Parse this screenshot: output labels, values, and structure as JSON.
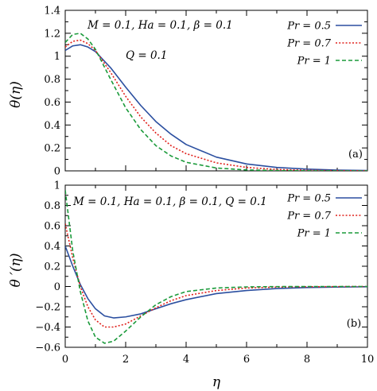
{
  "xlabel": "η",
  "chart_data": [
    {
      "type": "line",
      "panel_label": "(a)",
      "ylabel": "θ(η)",
      "annotations": [
        "M = 0.1,  Ha = 0.1,  β = 0.1",
        "Q = 0.1"
      ],
      "xlim": [
        0,
        10
      ],
      "ylim": [
        0,
        1.4
      ],
      "xticks": [
        "",
        "",
        "",
        "",
        "",
        ""
      ],
      "yticks": [
        "0",
        "0.2",
        "0.4",
        "0.6",
        "0.8",
        "1",
        "1.2",
        "1.4"
      ],
      "legend_position": "top-right",
      "series": [
        {
          "name": "Pr = 0.5",
          "color": "#2b4fa0",
          "dash": "solid",
          "x": [
            0,
            0.25,
            0.5,
            0.75,
            1,
            1.5,
            2,
            2.5,
            3,
            3.5,
            4,
            5,
            6,
            7,
            8,
            9,
            10
          ],
          "y": [
            1.05,
            1.09,
            1.1,
            1.08,
            1.04,
            0.9,
            0.73,
            0.57,
            0.43,
            0.32,
            0.23,
            0.12,
            0.06,
            0.03,
            0.015,
            0.007,
            0.003
          ]
        },
        {
          "name": "Pr = 0.7",
          "color": "#e0201b",
          "dash": "dotted",
          "x": [
            0,
            0.25,
            0.5,
            0.75,
            1,
            1.5,
            2,
            2.5,
            3,
            3.5,
            4,
            5,
            6,
            7,
            8,
            9,
            10
          ],
          "y": [
            1.08,
            1.13,
            1.14,
            1.11,
            1.05,
            0.86,
            0.65,
            0.47,
            0.33,
            0.22,
            0.15,
            0.07,
            0.03,
            0.012,
            0.005,
            0.002,
            0.001
          ]
        },
        {
          "name": "Pr = 1",
          "color": "#1a9a3a",
          "dash": "dashed",
          "x": [
            0,
            0.25,
            0.5,
            0.75,
            1,
            1.5,
            2,
            2.5,
            3,
            3.5,
            4,
            5,
            6,
            7,
            8,
            9,
            10
          ],
          "y": [
            1.12,
            1.19,
            1.2,
            1.15,
            1.06,
            0.8,
            0.55,
            0.36,
            0.22,
            0.13,
            0.075,
            0.025,
            0.008,
            0.003,
            0.001,
            0,
            0
          ]
        }
      ]
    },
    {
      "type": "line",
      "panel_label": "(b)",
      "ylabel": "θ ′(η)",
      "annotations": [
        "M = 0.1,  Ha = 0.1,  β = 0.1,  Q = 0.1"
      ],
      "xlim": [
        0,
        10
      ],
      "ylim": [
        -0.6,
        1
      ],
      "xticks": [
        "0",
        "2",
        "4",
        "6",
        "8",
        "10"
      ],
      "yticks": [
        "−0.6",
        "−0.4",
        "−0.2",
        "0",
        "0.2",
        "0.4",
        "0.6",
        "0.8",
        "1"
      ],
      "legend_position": "top-right",
      "series": [
        {
          "name": "Pr = 0.5",
          "color": "#2b4fa0",
          "dash": "solid",
          "x": [
            0,
            0.25,
            0.5,
            0.75,
            1,
            1.3,
            1.6,
            2,
            2.5,
            3,
            3.5,
            4,
            5,
            6,
            7,
            8,
            9,
            10
          ],
          "y": [
            0.4,
            0.2,
            0.02,
            -0.12,
            -0.22,
            -0.29,
            -0.31,
            -0.3,
            -0.27,
            -0.22,
            -0.17,
            -0.13,
            -0.07,
            -0.04,
            -0.02,
            -0.01,
            -0.006,
            -0.003
          ]
        },
        {
          "name": "Pr = 0.7",
          "color": "#e0201b",
          "dash": "dotted",
          "x": [
            0,
            0.25,
            0.5,
            0.75,
            1,
            1.3,
            1.6,
            2,
            2.5,
            3,
            3.5,
            4,
            5,
            6,
            7,
            8,
            9,
            10
          ],
          "y": [
            0.62,
            0.28,
            0.0,
            -0.2,
            -0.33,
            -0.4,
            -0.4,
            -0.37,
            -0.29,
            -0.21,
            -0.14,
            -0.09,
            -0.04,
            -0.015,
            -0.006,
            -0.003,
            -0.001,
            0
          ]
        },
        {
          "name": "Pr = 1",
          "color": "#1a9a3a",
          "dash": "dashed",
          "x": [
            0,
            0.25,
            0.5,
            0.75,
            1,
            1.3,
            1.6,
            2,
            2.5,
            3,
            3.5,
            4,
            5,
            6,
            7,
            8,
            9,
            10
          ],
          "y": [
            0.95,
            0.35,
            -0.05,
            -0.34,
            -0.5,
            -0.56,
            -0.54,
            -0.44,
            -0.3,
            -0.18,
            -0.1,
            -0.05,
            -0.015,
            -0.004,
            -0.001,
            0,
            0,
            0
          ]
        }
      ]
    }
  ]
}
